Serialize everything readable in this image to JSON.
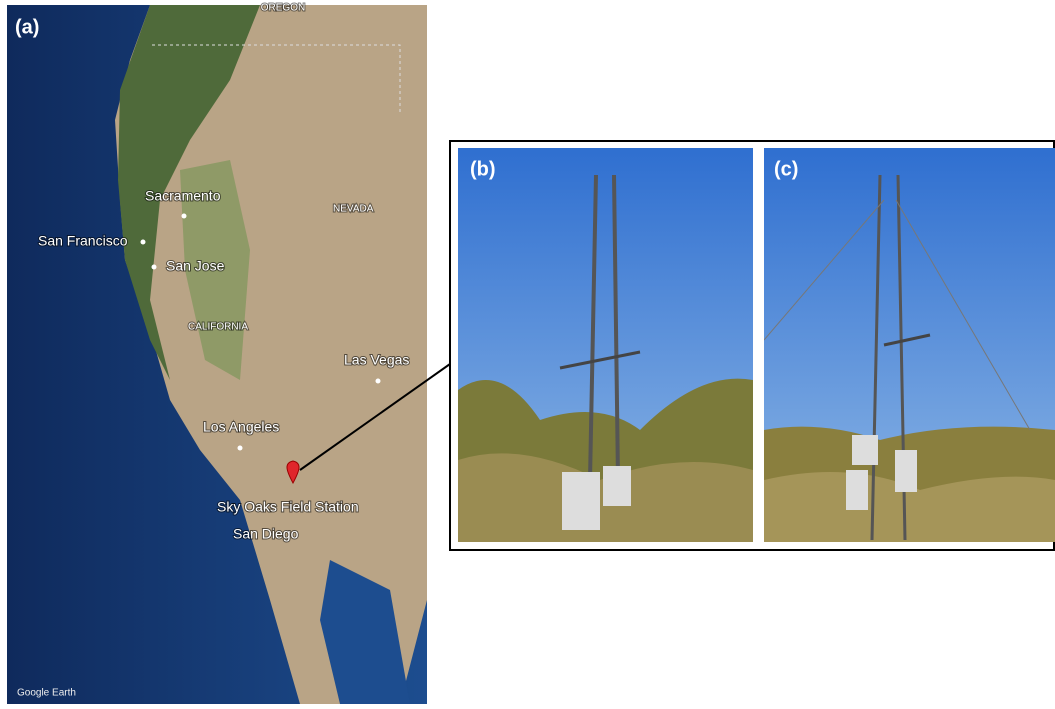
{
  "panels": {
    "a": "(a)",
    "b": "(b)",
    "c": "(c)"
  },
  "map": {
    "labels": {
      "oregon": "OREGON",
      "sacramento": "Sacramento",
      "nevada": "NEVADA",
      "san_francisco": "San Francisco",
      "san_jose": "San Jose",
      "california": "CALIFORNIA",
      "las_vegas": "Las Vegas",
      "los_angeles": "Los Angeles",
      "sky_oaks": "Sky Oaks Field Station",
      "san_diego": "San Diego"
    },
    "attribution": "Google Earth"
  }
}
